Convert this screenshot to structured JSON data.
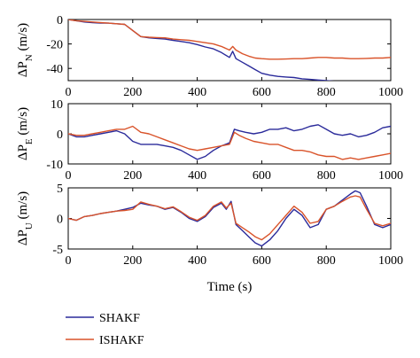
{
  "chart_data": [
    {
      "type": "line",
      "title": "",
      "xlabel": "",
      "ylabel_text": "ΔP",
      "ylabel_subscript": "N",
      "ylabel_unit": "(m/s)",
      "xlim": [
        0,
        1000
      ],
      "ylim": [
        -50,
        0
      ],
      "xticks": [
        0,
        200,
        400,
        600,
        800,
        1000
      ],
      "yticks": [
        0,
        -20,
        -40
      ],
      "grid": false,
      "series": [
        {
          "name": "SHAKF",
          "color": "#2a2a9a",
          "x": [
            0,
            25,
            50,
            75,
            100,
            125,
            150,
            175,
            200,
            225,
            250,
            275,
            300,
            325,
            350,
            375,
            400,
            425,
            450,
            475,
            500,
            510,
            520,
            540,
            560,
            580,
            600,
            625,
            650,
            675,
            700,
            725,
            750,
            775,
            800,
            825,
            850,
            875,
            900,
            925,
            950,
            975,
            1000
          ],
          "y": [
            0,
            -1,
            -2,
            -2.5,
            -3,
            -3,
            -3.5,
            -4,
            -9,
            -14,
            -15,
            -15.5,
            -16,
            -17,
            -18,
            -19,
            -20.5,
            -22.5,
            -24,
            -27,
            -31,
            -26,
            -32,
            -35,
            -38,
            -41,
            -44,
            -45.5,
            -46.5,
            -47,
            -47.5,
            -48.5,
            -49,
            -49.5,
            -50,
            -50.5,
            -51,
            -51.5,
            -52,
            -52,
            -52,
            -52,
            -52
          ]
        },
        {
          "name": "ISHAKF",
          "color": "#d9532a",
          "x": [
            0,
            25,
            50,
            75,
            100,
            125,
            150,
            175,
            200,
            225,
            250,
            275,
            300,
            325,
            350,
            375,
            400,
            425,
            450,
            475,
            500,
            510,
            520,
            540,
            560,
            580,
            600,
            625,
            650,
            675,
            700,
            725,
            750,
            775,
            800,
            825,
            850,
            875,
            900,
            925,
            950,
            975,
            1000
          ],
          "y": [
            0,
            -1,
            -1.5,
            -2,
            -2.5,
            -3,
            -3.5,
            -4,
            -9,
            -14,
            -14.5,
            -14.8,
            -15,
            -16,
            -16.5,
            -17,
            -18,
            -19,
            -20,
            -22,
            -25,
            -22,
            -25,
            -28,
            -30,
            -31.5,
            -32,
            -32.5,
            -32.5,
            -32.3,
            -32,
            -32,
            -31.5,
            -31,
            -31,
            -31.5,
            -31.5,
            -32,
            -32,
            -31.8,
            -31.5,
            -31.5,
            -31
          ]
        }
      ]
    },
    {
      "type": "line",
      "title": "",
      "xlabel": "",
      "ylabel_text": "ΔP",
      "ylabel_subscript": "E",
      "ylabel_unit": "(m/s)",
      "xlim": [
        0,
        1000
      ],
      "ylim": [
        -10,
        10
      ],
      "xticks": [
        0,
        200,
        400,
        600,
        800,
        1000
      ],
      "yticks": [
        10,
        0,
        -10
      ],
      "grid": false,
      "series": [
        {
          "name": "SHAKF",
          "color": "#2a2a9a",
          "x": [
            0,
            25,
            50,
            75,
            100,
            125,
            150,
            175,
            200,
            225,
            250,
            275,
            300,
            325,
            350,
            375,
            400,
            425,
            450,
            475,
            500,
            515,
            530,
            550,
            575,
            600,
            625,
            650,
            675,
            700,
            725,
            750,
            775,
            800,
            825,
            850,
            875,
            900,
            925,
            950,
            975,
            1000
          ],
          "y": [
            0,
            -1,
            -1,
            -0.5,
            0,
            0.5,
            1,
            0,
            -2.5,
            -3.5,
            -3.5,
            -3.5,
            -4,
            -4.5,
            -5.5,
            -7,
            -8.5,
            -7.5,
            -5.5,
            -4,
            -3,
            1.5,
            1,
            0.5,
            0,
            0.5,
            1.5,
            1.5,
            2,
            1,
            1.5,
            2.5,
            3,
            1.5,
            0,
            -0.5,
            0,
            -1,
            -0.5,
            0.5,
            2,
            2.5
          ]
        },
        {
          "name": "ISHAKF",
          "color": "#d9532a",
          "x": [
            0,
            25,
            50,
            75,
            100,
            125,
            150,
            175,
            200,
            225,
            250,
            275,
            300,
            325,
            350,
            375,
            400,
            425,
            450,
            475,
            500,
            515,
            530,
            550,
            575,
            600,
            625,
            650,
            675,
            700,
            725,
            750,
            775,
            800,
            825,
            850,
            875,
            900,
            925,
            950,
            975,
            1000
          ],
          "y": [
            0,
            -0.5,
            -0.5,
            0,
            0.5,
            1,
            1.5,
            1.5,
            2.5,
            0.5,
            0,
            -1,
            -2,
            -3,
            -4,
            -5,
            -5.5,
            -5,
            -4.5,
            -4,
            -3.5,
            0.5,
            -0.5,
            -1.5,
            -2.5,
            -3,
            -3.5,
            -3.5,
            -4.5,
            -5.5,
            -5.5,
            -6,
            -7,
            -7.5,
            -7.5,
            -8.5,
            -8,
            -8.5,
            -8,
            -7.5,
            -7,
            -6.5
          ]
        }
      ]
    },
    {
      "type": "line",
      "title": "",
      "xlabel": "Time (s)",
      "ylabel_text": "ΔP",
      "ylabel_subscript": "U",
      "ylabel_unit": "(m/s)",
      "xlim": [
        0,
        1000
      ],
      "ylim": [
        -5,
        5
      ],
      "xticks": [
        0,
        200,
        400,
        600,
        800,
        1000
      ],
      "yticks": [
        5,
        0,
        -5
      ],
      "grid": false,
      "series": [
        {
          "name": "SHAKF",
          "color": "#2a2a9a",
          "x": [
            0,
            25,
            50,
            75,
            100,
            125,
            150,
            175,
            200,
            225,
            250,
            275,
            300,
            325,
            350,
            375,
            400,
            425,
            450,
            475,
            490,
            505,
            520,
            540,
            560,
            580,
            600,
            625,
            650,
            675,
            700,
            725,
            750,
            775,
            800,
            825,
            850,
            875,
            890,
            905,
            925,
            950,
            975,
            1000
          ],
          "y": [
            0,
            -0.3,
            0.3,
            0.5,
            0.8,
            1,
            1.2,
            1.5,
            1.8,
            2.5,
            2.2,
            2,
            1.5,
            1.8,
            1,
            0,
            -0.5,
            0.3,
            1.8,
            2.5,
            1.5,
            2.8,
            -1,
            -2,
            -3,
            -4,
            -4.5,
            -3.5,
            -2,
            0,
            1.5,
            0.5,
            -1.5,
            -1,
            1.5,
            2,
            3,
            4,
            4.5,
            4.2,
            2,
            -1,
            -1.5,
            -1
          ]
        },
        {
          "name": "ISHAKF",
          "color": "#d9532a",
          "x": [
            0,
            25,
            50,
            75,
            100,
            125,
            150,
            175,
            200,
            225,
            250,
            275,
            300,
            325,
            350,
            375,
            400,
            425,
            450,
            475,
            490,
            505,
            520,
            540,
            560,
            580,
            600,
            625,
            650,
            675,
            700,
            725,
            750,
            775,
            800,
            825,
            850,
            875,
            890,
            905,
            925,
            950,
            975,
            1000
          ],
          "y": [
            0,
            -0.3,
            0.3,
            0.5,
            0.8,
            1,
            1.2,
            1.3,
            1.5,
            2.7,
            2.3,
            2,
            1.6,
            1.9,
            1.1,
            0.2,
            -0.3,
            0.5,
            2,
            2.7,
            1.7,
            2.5,
            -0.8,
            -1.5,
            -2.2,
            -3,
            -3.5,
            -2.5,
            -1,
            0.5,
            2,
            1,
            -0.8,
            -0.5,
            1.5,
            2,
            2.8,
            3.5,
            3.7,
            3.5,
            1.5,
            -0.8,
            -1.2,
            -0.8
          ]
        }
      ]
    }
  ],
  "legend": {
    "placement": "bottom-left",
    "entries": [
      {
        "label": "SHAKF",
        "color": "#2a2a9a"
      },
      {
        "label": "ISHAKF",
        "color": "#d9532a"
      }
    ]
  }
}
